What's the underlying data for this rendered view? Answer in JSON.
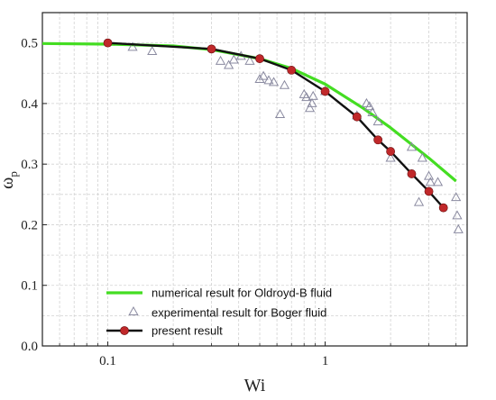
{
  "chart_data": {
    "type": "line",
    "xscale": "log",
    "xlim": [
      0.05,
      4.5
    ],
    "ylim": [
      0.0,
      0.55
    ],
    "xlabel": "Wi",
    "ylabel": "ω",
    "ylabel_sub": "p",
    "xticks": [
      {
        "value": 0.1,
        "label": "0.1"
      },
      {
        "value": 1,
        "label": "1"
      }
    ],
    "yticks": [
      {
        "value": 0.0,
        "label": "0.0"
      },
      {
        "value": 0.1,
        "label": "0.1"
      },
      {
        "value": 0.2,
        "label": "0.2"
      },
      {
        "value": 0.3,
        "label": "0.3"
      },
      {
        "value": 0.4,
        "label": "0.4"
      },
      {
        "value": 0.5,
        "label": "0.5"
      }
    ],
    "grid": true,
    "legend_position": "bottom-left",
    "series": [
      {
        "name": "numerical result for Oldroyd-B fluid",
        "kind": "line",
        "color": "#44dd22",
        "x": [
          0.05,
          0.1,
          0.2,
          0.3,
          0.5,
          0.7,
          1.0,
          1.5,
          2.0,
          3.0,
          4.0
        ],
        "y": [
          0.499,
          0.498,
          0.495,
          0.489,
          0.474,
          0.458,
          0.432,
          0.392,
          0.36,
          0.31,
          0.272
        ]
      },
      {
        "name": "experimental result for Boger fluid",
        "kind": "scatter",
        "marker": "triangle",
        "color": "#8a8aa0",
        "x": [
          0.13,
          0.16,
          0.33,
          0.36,
          0.38,
          0.41,
          0.45,
          0.5,
          0.52,
          0.55,
          0.58,
          0.62,
          0.65,
          0.8,
          0.82,
          0.85,
          0.87,
          0.88,
          1.0,
          1.4,
          1.55,
          1.6,
          1.65,
          1.75,
          2.0,
          2.5,
          2.7,
          2.8,
          3.0,
          3.05,
          3.3,
          4.0,
          4.05,
          4.1
        ],
        "y": [
          0.493,
          0.486,
          0.47,
          0.463,
          0.472,
          0.478,
          0.47,
          0.44,
          0.445,
          0.438,
          0.435,
          0.382,
          0.43,
          0.415,
          0.41,
          0.392,
          0.4,
          0.412,
          0.42,
          0.38,
          0.4,
          0.395,
          0.385,
          0.37,
          0.31,
          0.328,
          0.237,
          0.31,
          0.28,
          0.27,
          0.27,
          0.245,
          0.215,
          0.192
        ]
      },
      {
        "name": "present result",
        "kind": "line-marker",
        "color": "#111111",
        "marker_color": "#c0282a",
        "x": [
          0.1,
          0.3,
          0.5,
          0.7,
          1.0,
          1.4,
          1.75,
          2.0,
          2.5,
          3.0,
          3.5
        ],
        "y": [
          0.5,
          0.49,
          0.474,
          0.455,
          0.42,
          0.378,
          0.34,
          0.321,
          0.284,
          0.255,
          0.228
        ]
      }
    ]
  }
}
